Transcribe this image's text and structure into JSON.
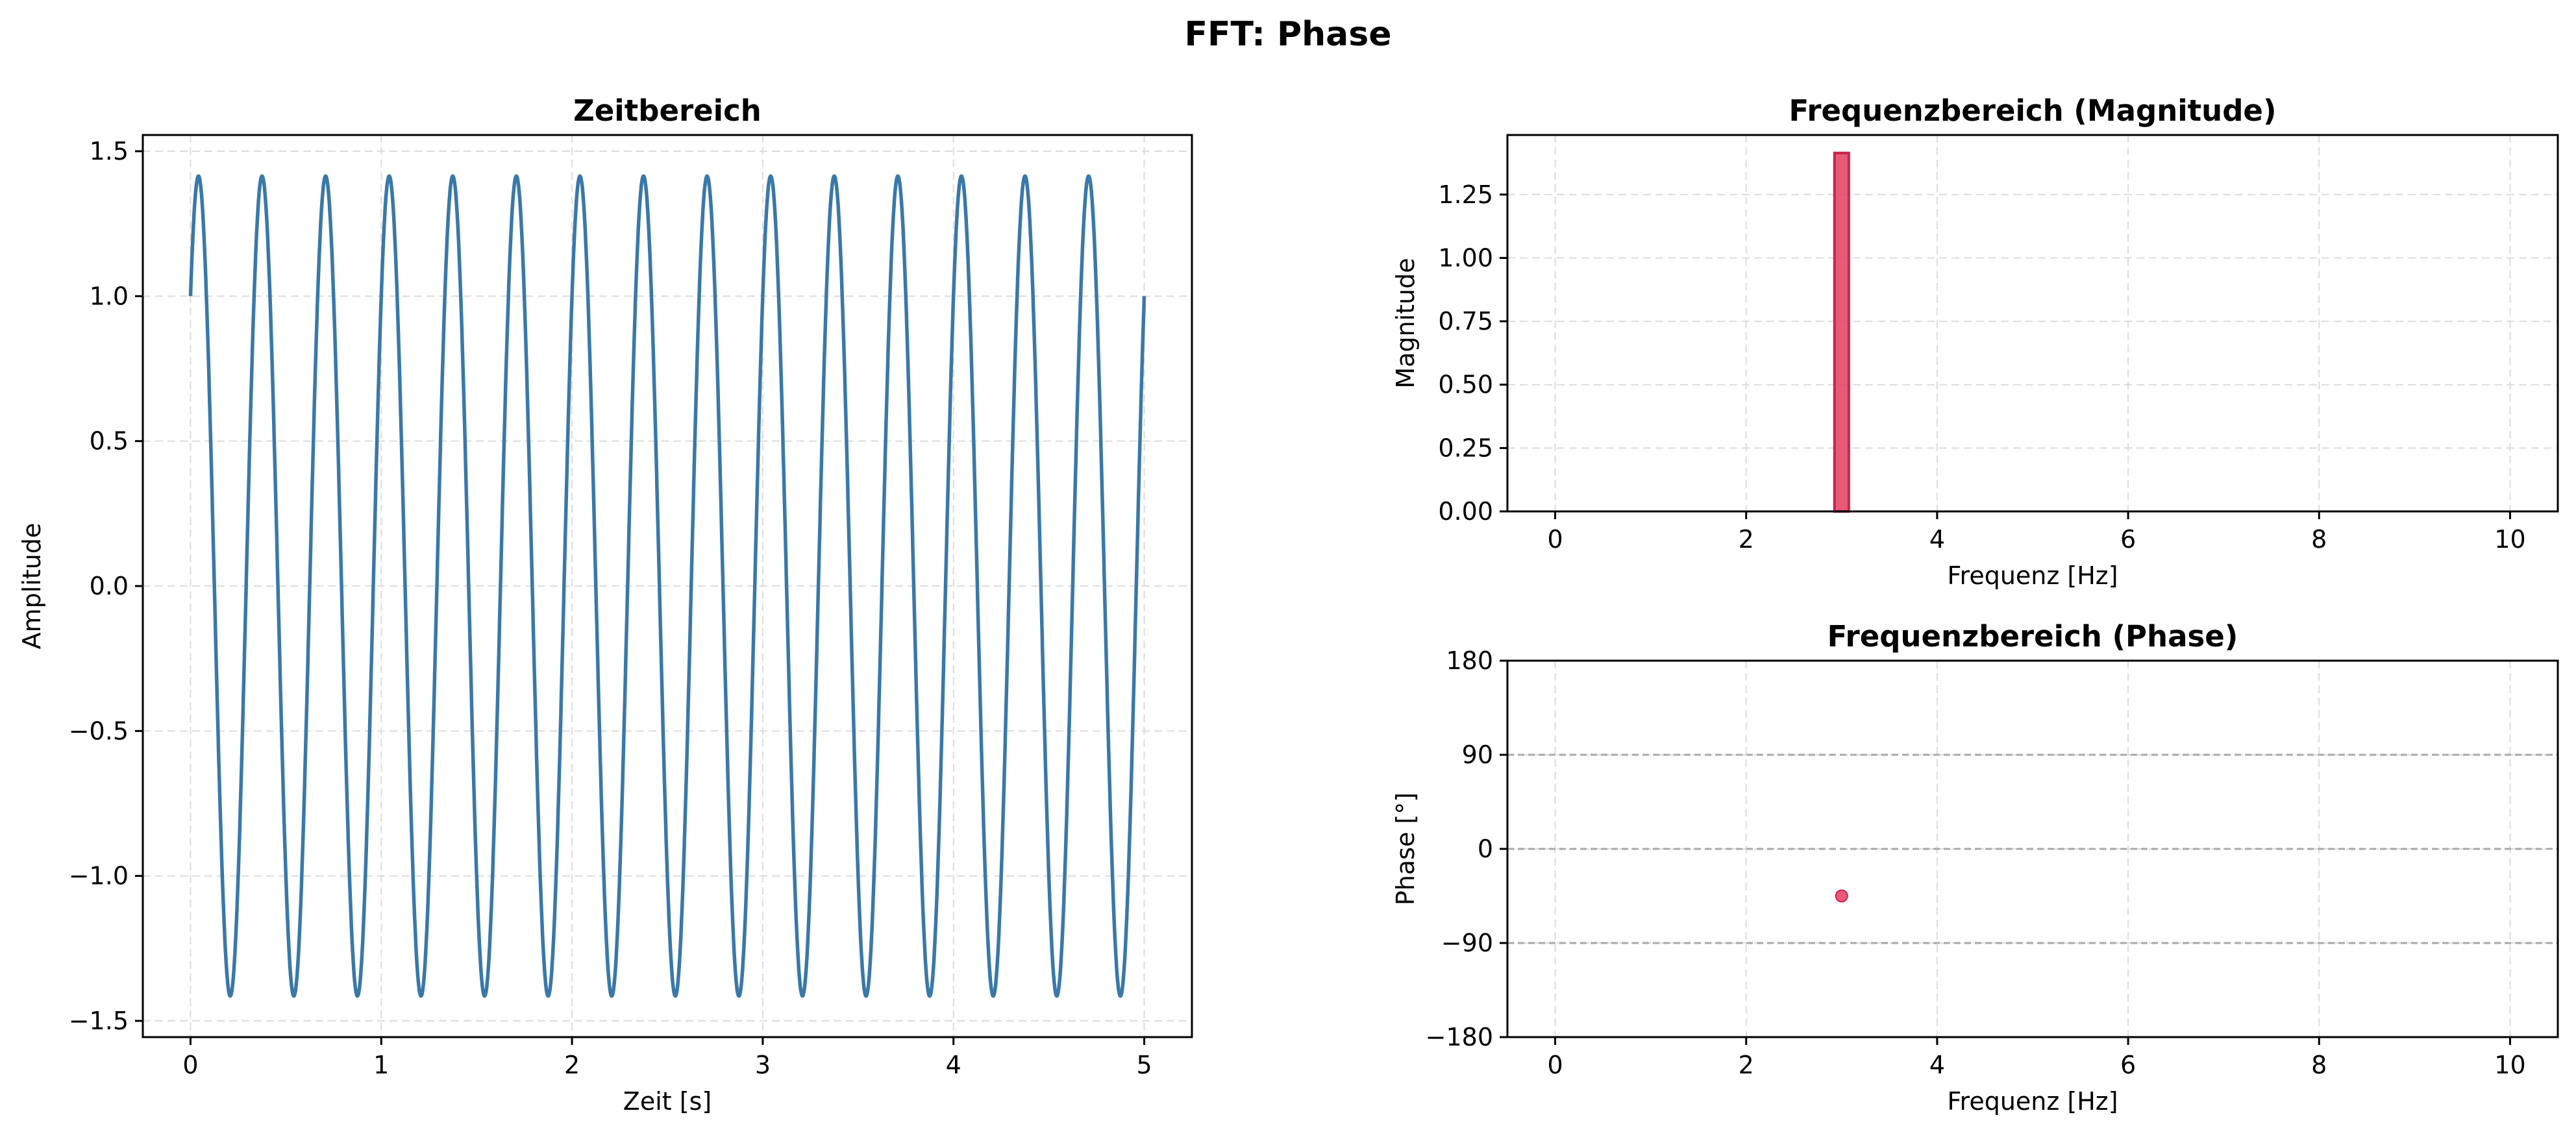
{
  "figure": {
    "title": "FFT: Phase"
  },
  "chart_data": [
    {
      "type": "line",
      "title": "Zeitbereich",
      "xlabel": "Zeit [s]",
      "ylabel": "Amplitude",
      "xlim": [
        -0.25,
        5.25
      ],
      "ylim": [
        -1.556,
        1.556
      ],
      "xticks": [
        0,
        1,
        2,
        3,
        4,
        5
      ],
      "xtick_labels": [
        "0",
        "1",
        "2",
        "3",
        "4",
        "5"
      ],
      "yticks": [
        -1.5,
        -1.0,
        -0.5,
        0.0,
        0.5,
        1.0,
        1.5
      ],
      "ytick_labels": [
        "−1.5",
        "−1.0",
        "−0.5",
        "0.0",
        "0.5",
        "1.0",
        "1.5"
      ],
      "grid": true,
      "series": [
        {
          "color": "#3a78a8",
          "function": "1.4142 * sin(2*pi*3*t + 45 deg)",
          "t_range": [
            0,
            5
          ],
          "frequency_hz": 3,
          "amplitude": 1.4142,
          "phase_deg": 45
        }
      ]
    },
    {
      "type": "bar",
      "title": "Frequenzbereich (Magnitude)",
      "xlabel": "Frequenz [Hz]",
      "ylabel": "Magnitude",
      "xlim": [
        -0.5,
        10.5
      ],
      "ylim": [
        0,
        1.485
      ],
      "xticks": [
        0,
        2,
        4,
        6,
        8,
        10
      ],
      "xtick_labels": [
        "0",
        "2",
        "4",
        "6",
        "8",
        "10"
      ],
      "yticks": [
        0,
        0.25,
        0.5,
        0.75,
        1.0,
        1.25
      ],
      "ytick_labels": [
        "0.00",
        "0.25",
        "0.50",
        "0.75",
        "1.00",
        "1.25"
      ],
      "grid": true,
      "bar_width": 0.15,
      "color": "#e8476a",
      "edge_color": "#c8254a",
      "x": [
        3
      ],
      "values": [
        1.414
      ]
    },
    {
      "type": "scatter",
      "title": "Frequenzbereich (Phase)",
      "xlabel": "Frequenz [Hz]",
      "ylabel": "Phase [°]",
      "xlim": [
        -0.5,
        10.5
      ],
      "ylim": [
        -180,
        180
      ],
      "xticks": [
        0,
        2,
        4,
        6,
        8,
        10
      ],
      "xtick_labels": [
        "0",
        "2",
        "4",
        "6",
        "8",
        "10"
      ],
      "yticks": [
        -180,
        -90,
        0,
        90,
        180
      ],
      "ytick_labels": [
        "−180",
        "−90",
        "0",
        "90",
        "180"
      ],
      "grid": true,
      "reference_lines": [
        -90,
        0,
        90
      ],
      "color": "#e8476a",
      "points": [
        {
          "x": 3,
          "y": -45
        }
      ]
    }
  ]
}
